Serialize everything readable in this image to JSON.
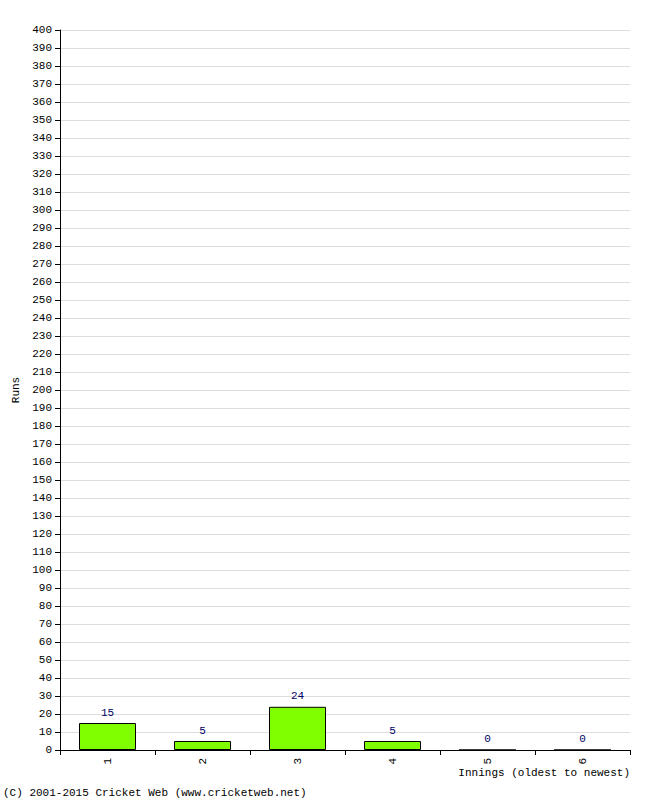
{
  "chart_data": {
    "type": "bar",
    "x_label": "Innings (oldest to newest)",
    "y_label": "Runs",
    "footer": "(C) 2001-2015 Cricket Web (www.cricketweb.net)",
    "categories": [
      "1",
      "2",
      "3",
      "4",
      "5",
      "6"
    ],
    "values": [
      15,
      5,
      24,
      5,
      0,
      0
    ],
    "color": "#80ff00",
    "ylim": [
      0,
      400
    ],
    "yticks": [
      0,
      10,
      20,
      30,
      40,
      50,
      60,
      70,
      80,
      90,
      100,
      110,
      120,
      130,
      140,
      150,
      160,
      170,
      180,
      190,
      200,
      210,
      220,
      230,
      240,
      250,
      260,
      270,
      280,
      290,
      300,
      310,
      320,
      330,
      340,
      350,
      360,
      370,
      380,
      390,
      400
    ],
    "grid": true,
    "data_labels": true
  }
}
